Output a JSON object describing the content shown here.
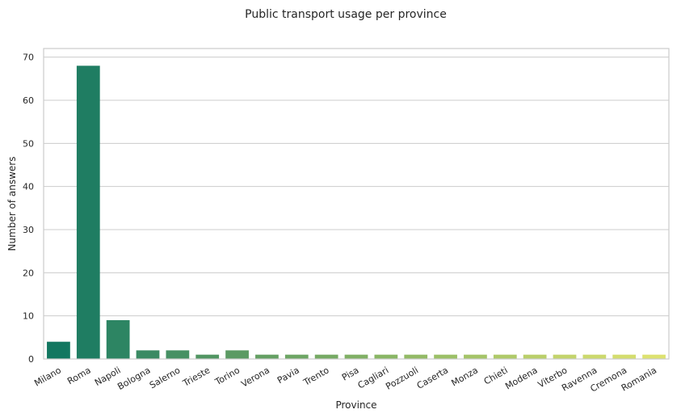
{
  "chart_data": {
    "type": "bar",
    "title": "Public transport usage per province",
    "xlabel": "Province",
    "ylabel": "Number of answers",
    "categories": [
      "Milano",
      "Roma",
      "Napoli",
      "Bologna",
      "Salerno",
      "Trieste",
      "Torino",
      "Verona",
      "Pavia",
      "Trento",
      "Pisa",
      "Cagliari",
      "Pozzuoli",
      "Caserta",
      "Monza",
      "Chieti",
      "Modena",
      "Viterbo",
      "Ravenna",
      "Cremona",
      "Romania"
    ],
    "values": [
      4,
      68,
      9,
      2,
      2,
      1,
      2,
      1,
      1,
      1,
      1,
      1,
      1,
      1,
      1,
      1,
      1,
      1,
      1,
      1,
      1
    ],
    "colors": [
      "#127760",
      "#1f7d62",
      "#2d8563",
      "#3a8a63",
      "#469063",
      "#519562",
      "#5b9a63",
      "#64a063",
      "#6da664",
      "#76aa64",
      "#80b065",
      "#89b665",
      "#93ba66",
      "#9cc067",
      "#a5c468",
      "#afca69",
      "#bacf6a",
      "#c3d46c",
      "#ccd96d",
      "#d4dd6e",
      "#dde270"
    ],
    "ylim": [
      0,
      72
    ],
    "yticks": [
      0,
      10,
      20,
      30,
      40,
      50,
      60,
      70
    ],
    "grid": true,
    "legend": "none"
  }
}
